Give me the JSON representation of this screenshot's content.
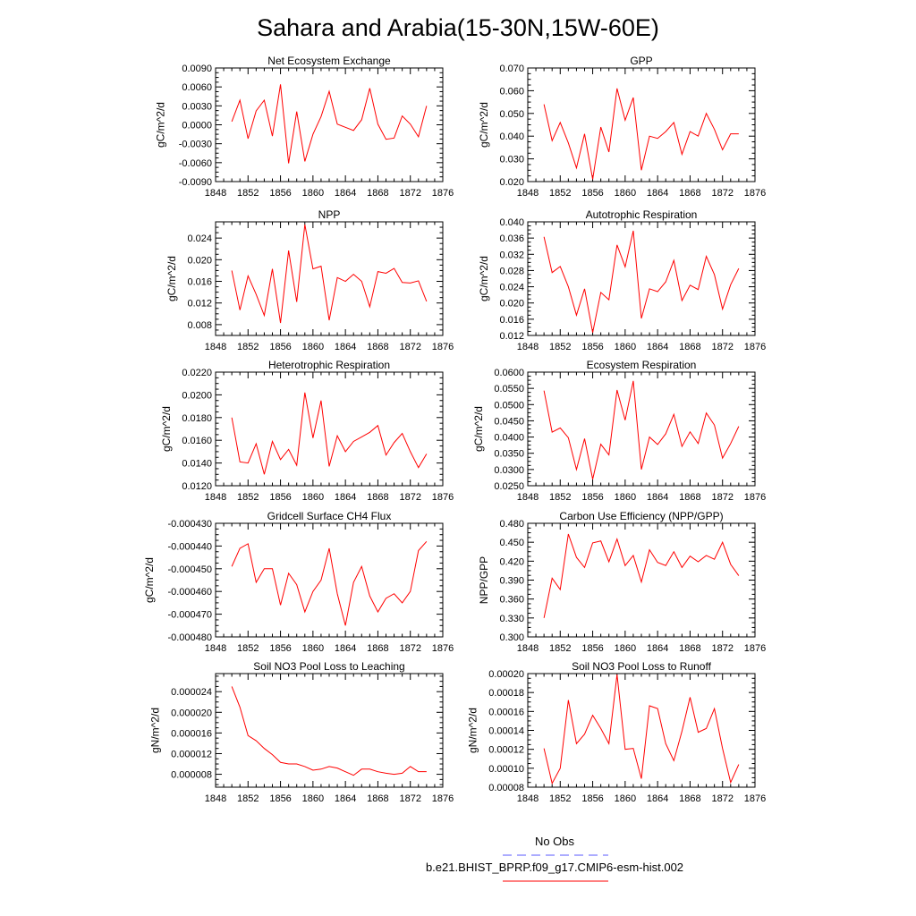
{
  "page_title": "Sahara and Arabia(15-30N,15W-60E)",
  "colors": {
    "model_line": "#ff0000",
    "obs_line": "#5a5aff",
    "axis": "#000000"
  },
  "legend": {
    "obs_label": "No Obs",
    "model_label": "b.e21.BHIST_BPRP.f09_g17.CMIP6-esm-hist.002"
  },
  "chart_data": [
    {
      "type": "line",
      "title": "Net Ecosystem Exchange",
      "ylabel": "gC/m^2/d",
      "xlim": [
        1848,
        1876
      ],
      "xticks": [
        "1848",
        "1852",
        "1856",
        "1860",
        "1864",
        "1868",
        "1872",
        "1876"
      ],
      "ylim": [
        -0.009,
        0.009
      ],
      "yticks": [
        "0.0090",
        "0.0060",
        "0.0030",
        "0.0000",
        "-0.0030",
        "-0.0060",
        "-0.0090"
      ],
      "yticks_values": [
        0.009,
        0.006,
        0.003,
        0,
        -0.003,
        -0.006,
        -0.009
      ],
      "x": [
        1850,
        1851,
        1852,
        1853,
        1854,
        1855,
        1856,
        1857,
        1858,
        1859,
        1860,
        1861,
        1862,
        1863,
        1864,
        1865,
        1866,
        1867,
        1868,
        1869,
        1870,
        1871,
        1872,
        1873,
        1874
      ],
      "series": [
        {
          "values": [
            0.0005,
            0.0039,
            -0.0022,
            0.0022,
            0.0039,
            -0.0018,
            0.0064,
            -0.0061,
            0.0021,
            -0.0058,
            -0.0015,
            0.0013,
            0.0053,
            0.0001,
            -0.0004,
            -0.0009,
            0.0008,
            0.0058,
            0.0001,
            -0.0023,
            -0.0021,
            0.0014,
            0.0001,
            -0.0019,
            0.003
          ]
        }
      ]
    },
    {
      "type": "line",
      "title": "GPP",
      "ylabel": "gC/m^2/d",
      "xlim": [
        1848,
        1876
      ],
      "xticks": [
        "1848",
        "1852",
        "1856",
        "1860",
        "1864",
        "1868",
        "1872",
        "1876"
      ],
      "ylim": [
        0.02,
        0.07
      ],
      "yticks": [
        "0.070",
        "0.060",
        "0.050",
        "0.040",
        "0.030",
        "0.020"
      ],
      "yticks_values": [
        0.07,
        0.06,
        0.05,
        0.04,
        0.03,
        0.02
      ],
      "x": [
        1850,
        1851,
        1852,
        1853,
        1854,
        1855,
        1856,
        1857,
        1858,
        1859,
        1860,
        1861,
        1862,
        1863,
        1864,
        1865,
        1866,
        1867,
        1868,
        1869,
        1870,
        1871,
        1872,
        1873,
        1874
      ],
      "series": [
        {
          "values": [
            0.054,
            0.038,
            0.046,
            0.037,
            0.026,
            0.041,
            0.021,
            0.044,
            0.033,
            0.061,
            0.047,
            0.057,
            0.025,
            0.04,
            0.039,
            0.042,
            0.046,
            0.032,
            0.042,
            0.04,
            0.05,
            0.043,
            0.034,
            0.041,
            0.041
          ]
        }
      ]
    },
    {
      "type": "line",
      "title": "NPP",
      "ylabel": "gC/m^2/d",
      "xlim": [
        1848,
        1876
      ],
      "xticks": [
        "1848",
        "1852",
        "1856",
        "1860",
        "1864",
        "1868",
        "1872",
        "1876"
      ],
      "ylim": [
        0.006,
        0.027
      ],
      "yticks": [
        "0.024",
        "0.020",
        "0.016",
        "0.012",
        "0.008"
      ],
      "yticks_values": [
        0.024,
        0.02,
        0.016,
        0.012,
        0.008
      ],
      "x": [
        1850,
        1851,
        1852,
        1853,
        1854,
        1855,
        1856,
        1857,
        1858,
        1859,
        1860,
        1861,
        1862,
        1863,
        1864,
        1865,
        1866,
        1867,
        1868,
        1869,
        1870,
        1871,
        1872,
        1873,
        1874
      ],
      "series": [
        {
          "values": [
            0.018,
            0.0107,
            0.017,
            0.0136,
            0.0097,
            0.0183,
            0.0083,
            0.0217,
            0.0122,
            0.0265,
            0.0183,
            0.0188,
            0.0088,
            0.0167,
            0.016,
            0.0173,
            0.016,
            0.0113,
            0.0178,
            0.0175,
            0.0184,
            0.0158,
            0.0157,
            0.0161,
            0.0123
          ]
        }
      ]
    },
    {
      "type": "line",
      "title": "Autotrophic Respiration",
      "ylabel": "gC/m^2/d",
      "xlim": [
        1848,
        1876
      ],
      "xticks": [
        "1848",
        "1852",
        "1856",
        "1860",
        "1864",
        "1868",
        "1872",
        "1876"
      ],
      "ylim": [
        0.012,
        0.04
      ],
      "yticks": [
        "0.040",
        "0.036",
        "0.032",
        "0.028",
        "0.024",
        "0.020",
        "0.016",
        "0.012"
      ],
      "yticks_values": [
        0.04,
        0.036,
        0.032,
        0.028,
        0.024,
        0.02,
        0.016,
        0.012
      ],
      "x": [
        1850,
        1851,
        1852,
        1853,
        1854,
        1855,
        1856,
        1857,
        1858,
        1859,
        1860,
        1861,
        1862,
        1863,
        1864,
        1865,
        1866,
        1867,
        1868,
        1869,
        1870,
        1871,
        1872,
        1873,
        1874
      ],
      "series": [
        {
          "values": [
            0.0363,
            0.0275,
            0.029,
            0.024,
            0.017,
            0.0235,
            0.0127,
            0.0226,
            0.0208,
            0.0343,
            0.0289,
            0.0378,
            0.0162,
            0.0235,
            0.0228,
            0.0252,
            0.0305,
            0.0206,
            0.0244,
            0.0233,
            0.0315,
            0.027,
            0.0185,
            0.0245,
            0.0285
          ]
        }
      ]
    },
    {
      "type": "line",
      "title": "Heterotrophic Respiration",
      "ylabel": "gC/m^2/d",
      "xlim": [
        1848,
        1876
      ],
      "xticks": [
        "1848",
        "1852",
        "1856",
        "1860",
        "1864",
        "1868",
        "1872",
        "1876"
      ],
      "ylim": [
        0.012,
        0.022
      ],
      "yticks": [
        "0.0220",
        "0.0200",
        "0.0180",
        "0.0160",
        "0.0140",
        "0.0120"
      ],
      "yticks_values": [
        0.022,
        0.02,
        0.018,
        0.016,
        0.014,
        0.012
      ],
      "x": [
        1850,
        1851,
        1852,
        1853,
        1854,
        1855,
        1856,
        1857,
        1858,
        1859,
        1860,
        1861,
        1862,
        1863,
        1864,
        1865,
        1866,
        1867,
        1868,
        1869,
        1870,
        1871,
        1872,
        1873,
        1874
      ],
      "series": [
        {
          "values": [
            0.018,
            0.0141,
            0.014,
            0.0157,
            0.013,
            0.0159,
            0.0143,
            0.0152,
            0.0138,
            0.0202,
            0.0162,
            0.0195,
            0.0137,
            0.0164,
            0.015,
            0.0159,
            0.0163,
            0.0167,
            0.0173,
            0.0147,
            0.0158,
            0.0166,
            0.015,
            0.0136,
            0.0148
          ]
        }
      ]
    },
    {
      "type": "line",
      "title": "Ecosystem Respiration",
      "ylabel": "gC/m^2/d",
      "xlim": [
        1848,
        1876
      ],
      "xticks": [
        "1848",
        "1852",
        "1856",
        "1860",
        "1864",
        "1868",
        "1872",
        "1876"
      ],
      "ylim": [
        0.025,
        0.06
      ],
      "yticks": [
        "0.0600",
        "0.0550",
        "0.0500",
        "0.0450",
        "0.0400",
        "0.0350",
        "0.0300",
        "0.0250"
      ],
      "yticks_values": [
        0.06,
        0.055,
        0.05,
        0.045,
        0.04,
        0.035,
        0.03,
        0.025
      ],
      "x": [
        1850,
        1851,
        1852,
        1853,
        1854,
        1855,
        1856,
        1857,
        1858,
        1859,
        1860,
        1861,
        1862,
        1863,
        1864,
        1865,
        1866,
        1867,
        1868,
        1869,
        1870,
        1871,
        1872,
        1873,
        1874
      ],
      "series": [
        {
          "values": [
            0.0543,
            0.0415,
            0.0428,
            0.0398,
            0.03,
            0.0395,
            0.027,
            0.0378,
            0.0345,
            0.0545,
            0.0452,
            0.0573,
            0.03,
            0.04,
            0.0377,
            0.041,
            0.047,
            0.0371,
            0.0416,
            0.038,
            0.0474,
            0.0437,
            0.0335,
            0.038,
            0.0433
          ]
        }
      ]
    },
    {
      "type": "line",
      "title": "Gridcell Surface CH4 Flux",
      "ylabel": "gC/m^2/d",
      "xlim": [
        1848,
        1876
      ],
      "xticks": [
        "1848",
        "1852",
        "1856",
        "1860",
        "1864",
        "1868",
        "1872",
        "1876"
      ],
      "ylim": [
        -0.00048,
        -0.00043
      ],
      "yticks": [
        "-0.000430",
        "-0.000440",
        "-0.000450",
        "-0.000460",
        "-0.000470",
        "-0.000480"
      ],
      "yticks_values": [
        -0.00043,
        -0.00044,
        -0.00045,
        -0.00046,
        -0.00047,
        -0.00048
      ],
      "x": [
        1850,
        1851,
        1852,
        1853,
        1854,
        1855,
        1856,
        1857,
        1858,
        1859,
        1860,
        1861,
        1862,
        1863,
        1864,
        1865,
        1866,
        1867,
        1868,
        1869,
        1870,
        1871,
        1872,
        1873,
        1874
      ],
      "series": [
        {
          "values": [
            -0.000449,
            -0.000441,
            -0.000439,
            -0.000456,
            -0.00045,
            -0.00045,
            -0.000466,
            -0.000452,
            -0.000457,
            -0.000469,
            -0.00046,
            -0.000455,
            -0.000441,
            -0.000461,
            -0.000475,
            -0.000456,
            -0.000449,
            -0.000462,
            -0.000469,
            -0.000463,
            -0.000461,
            -0.000465,
            -0.00046,
            -0.000442,
            -0.000438
          ]
        }
      ]
    },
    {
      "type": "line",
      "title": "Carbon Use Efficiency (NPP/GPP)",
      "ylabel": "NPP/GPP",
      "xlim": [
        1848,
        1876
      ],
      "xticks": [
        "1848",
        "1852",
        "1856",
        "1860",
        "1864",
        "1868",
        "1872",
        "1876"
      ],
      "ylim": [
        0.3,
        0.48
      ],
      "yticks": [
        "0.480",
        "0.450",
        "0.420",
        "0.390",
        "0.360",
        "0.330",
        "0.300"
      ],
      "yticks_values": [
        0.48,
        0.45,
        0.42,
        0.39,
        0.36,
        0.33,
        0.3
      ],
      "x": [
        1850,
        1851,
        1852,
        1853,
        1854,
        1855,
        1856,
        1857,
        1858,
        1859,
        1860,
        1861,
        1862,
        1863,
        1864,
        1865,
        1866,
        1867,
        1868,
        1869,
        1870,
        1871,
        1872,
        1873,
        1874
      ],
      "series": [
        {
          "values": [
            0.33,
            0.393,
            0.375,
            0.463,
            0.426,
            0.41,
            0.449,
            0.452,
            0.419,
            0.455,
            0.413,
            0.429,
            0.387,
            0.438,
            0.418,
            0.413,
            0.435,
            0.41,
            0.428,
            0.419,
            0.429,
            0.423,
            0.45,
            0.415,
            0.397
          ]
        }
      ]
    },
    {
      "type": "line",
      "title": "Soil NO3 Pool Loss to Leaching",
      "ylabel": "gN/m^2/d",
      "xlim": [
        1848,
        1876
      ],
      "xticks": [
        "1848",
        "1852",
        "1856",
        "1860",
        "1864",
        "1868",
        "1872",
        "1876"
      ],
      "ylim": [
        5.5e-06,
        2.75e-05
      ],
      "yticks": [
        "0.000024",
        "0.000020",
        "0.000016",
        "0.000012",
        "0.000008"
      ],
      "yticks_values": [
        2.4e-05,
        2e-05,
        1.6e-05,
        1.2e-05,
        8e-06
      ],
      "x": [
        1850,
        1851,
        1852,
        1853,
        1854,
        1855,
        1856,
        1857,
        1858,
        1859,
        1860,
        1861,
        1862,
        1863,
        1864,
        1865,
        1866,
        1867,
        1868,
        1869,
        1870,
        1871,
        1872,
        1873,
        1874
      ],
      "series": [
        {
          "values": [
            2.5e-05,
            2.1e-05,
            1.55e-05,
            1.45e-05,
            1.3e-05,
            1.18e-05,
            1.03e-05,
            1e-05,
            1e-05,
            9.5e-06,
            8.8e-06,
            9e-06,
            9.5e-06,
            9.2e-06,
            8.5e-06,
            7.8e-06,
            9e-06,
            9e-06,
            8.5e-06,
            8.2e-06,
            8e-06,
            8.2e-06,
            9.5e-06,
            8.5e-06,
            8.5e-06
          ]
        }
      ]
    },
    {
      "type": "line",
      "title": "Soil NO3 Pool Loss to Runoff",
      "ylabel": "gN/m^2/d",
      "xlim": [
        1848,
        1876
      ],
      "xticks": [
        "1848",
        "1852",
        "1856",
        "1860",
        "1864",
        "1868",
        "1872",
        "1876"
      ],
      "ylim": [
        8e-05,
        0.0002
      ],
      "yticks": [
        "0.00020",
        "0.00018",
        "0.00016",
        "0.00014",
        "0.00012",
        "0.00010",
        "0.00008"
      ],
      "yticks_values": [
        0.0002,
        0.00018,
        0.00016,
        0.00014,
        0.00012,
        0.0001,
        8e-05
      ],
      "x": [
        1850,
        1851,
        1852,
        1853,
        1854,
        1855,
        1856,
        1857,
        1858,
        1859,
        1860,
        1861,
        1862,
        1863,
        1864,
        1865,
        1866,
        1867,
        1868,
        1869,
        1870,
        1871,
        1872,
        1873,
        1874
      ],
      "series": [
        {
          "values": [
            0.000121,
            8.4e-05,
            0.0001,
            0.000172,
            0.000126,
            0.000136,
            0.000156,
            0.000142,
            0.000126,
            0.000199,
            0.00012,
            0.000121,
            8.9e-05,
            0.000166,
            0.000163,
            0.000126,
            0.000108,
            0.000139,
            0.000175,
            0.000138,
            0.000142,
            0.000163,
            0.000121,
            8.5e-05,
            0.000104
          ]
        }
      ]
    }
  ]
}
